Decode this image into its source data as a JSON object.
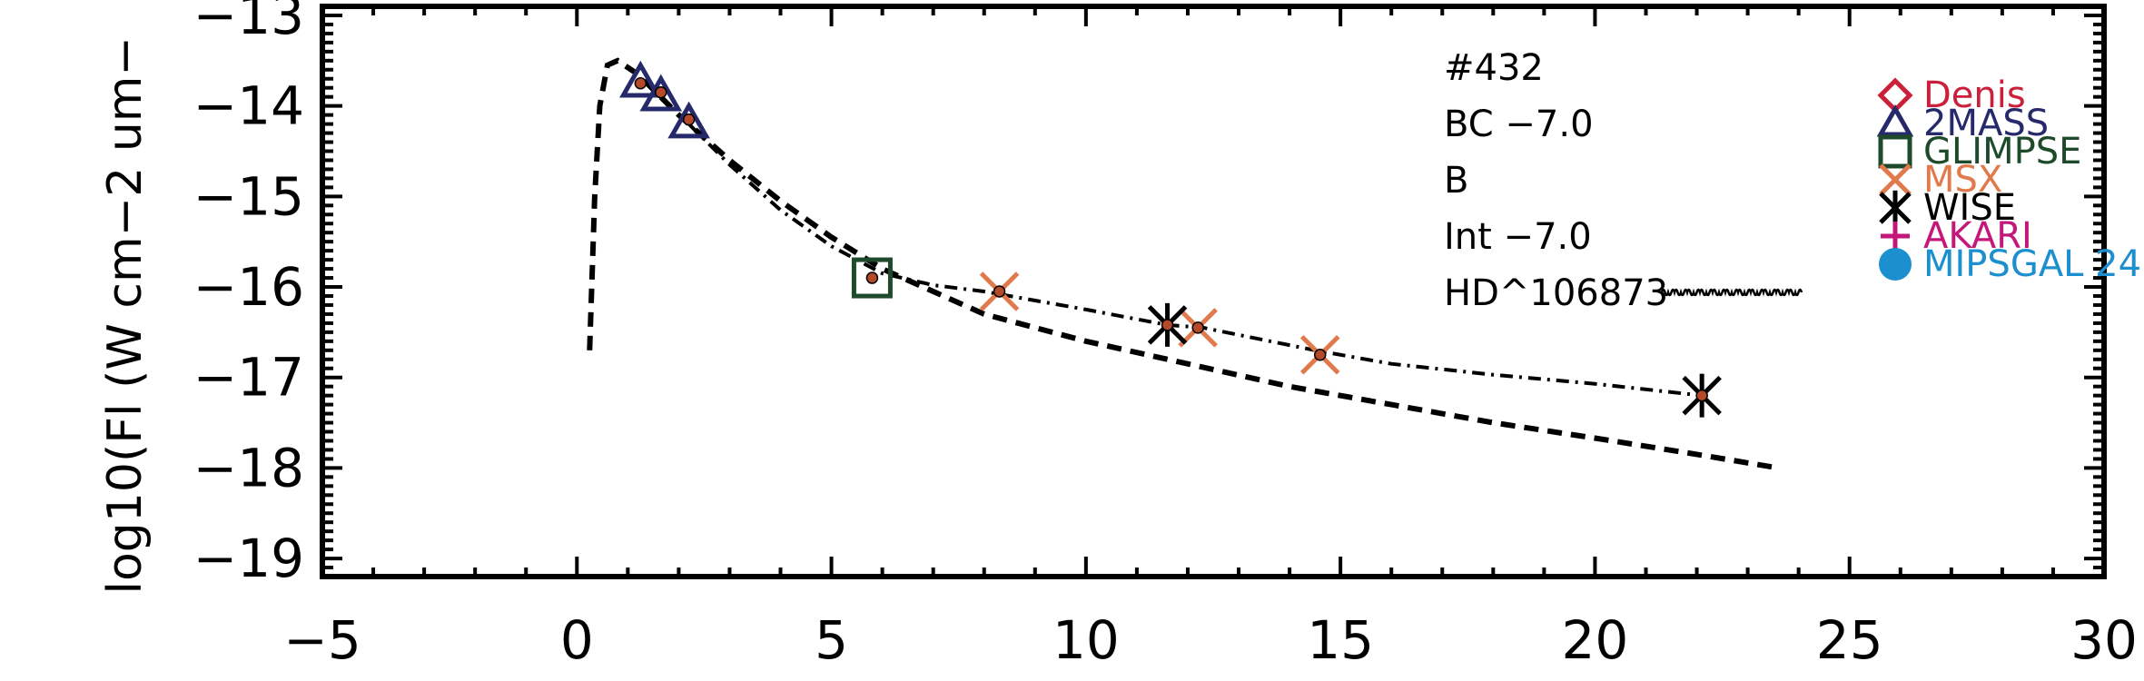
{
  "chart_data": {
    "type": "scatter",
    "title": "",
    "xlabel": "",
    "ylabel": "log10(Fl (W cm−2 um−",
    "xlim": [
      -5,
      30
    ],
    "ylim": [
      -19.2,
      -12.9
    ],
    "x_ticks": [
      -5,
      0,
      5,
      10,
      15,
      20,
      25,
      30
    ],
    "x_tick_labels": [
      "−5",
      "0",
      "5",
      "10",
      "15",
      "20",
      "25",
      "30"
    ],
    "y_ticks": [
      -19,
      -18,
      -17,
      -16,
      -15,
      -14,
      -13
    ],
    "y_tick_labels": [
      "−19",
      "−18",
      "−17",
      "−16",
      "−15",
      "−14",
      "−13"
    ],
    "grid": false,
    "legend_position": "right",
    "annotations": [
      "#432",
      "BC  −7.0",
      "B",
      "Int  −7.0",
      "HD^106873"
    ],
    "legend": [
      {
        "label": "Denis",
        "color": "#cc1f3a",
        "marker": "diamond"
      },
      {
        "label": "2MASS",
        "color": "#262a6b",
        "marker": "triangle"
      },
      {
        "label": "GLIMPSE",
        "color": "#1d4a2a",
        "marker": "square"
      },
      {
        "label": "MSX",
        "color": "#e07a4c",
        "marker": "x"
      },
      {
        "label": "WISE",
        "color": "#000000",
        "marker": "asterisk"
      },
      {
        "label": "AKARI",
        "color": "#c4177a",
        "marker": "plus"
      },
      {
        "label": "MIPSGAL 24",
        "color": "#1c8fcf",
        "marker": "circle"
      }
    ],
    "model_curve": {
      "style": "dashed",
      "points": [
        [
          0.25,
          -16.7
        ],
        [
          0.35,
          -15.0
        ],
        [
          0.45,
          -14.0
        ],
        [
          0.6,
          -13.55
        ],
        [
          0.8,
          -13.5
        ],
        [
          1.2,
          -13.65
        ],
        [
          2.0,
          -14.1
        ],
        [
          3.0,
          -14.6
        ],
        [
          4.0,
          -15.05
        ],
        [
          5.0,
          -15.45
        ],
        [
          6.0,
          -15.8
        ],
        [
          7.0,
          -16.05
        ],
        [
          8.0,
          -16.3
        ],
        [
          10.0,
          -16.6
        ],
        [
          12.0,
          -16.85
        ],
        [
          14.0,
          -17.1
        ],
        [
          16.0,
          -17.3
        ],
        [
          18.0,
          -17.5
        ],
        [
          20.0,
          -17.67
        ],
        [
          22.0,
          -17.85
        ],
        [
          23.6,
          -18.0
        ]
      ]
    },
    "fit_curve": {
      "style": "dashdot",
      "points": [
        [
          2.2,
          -14.2
        ],
        [
          3.0,
          -14.65
        ],
        [
          4.0,
          -15.15
        ],
        [
          5.0,
          -15.55
        ],
        [
          6.0,
          -15.85
        ],
        [
          7.0,
          -15.98
        ],
        [
          8.0,
          -16.05
        ],
        [
          10.0,
          -16.25
        ],
        [
          11.6,
          -16.42
        ],
        [
          12.3,
          -16.45
        ],
        [
          14.5,
          -16.7
        ],
        [
          16.0,
          -16.85
        ],
        [
          18.0,
          -16.97
        ],
        [
          20.0,
          -17.07
        ],
        [
          22.1,
          -17.2
        ]
      ]
    },
    "flux_points": [
      {
        "x": 1.25,
        "y": -13.75,
        "color": "#b54a2a"
      },
      {
        "x": 1.65,
        "y": -13.85,
        "color": "#b54a2a"
      },
      {
        "x": 2.2,
        "y": -14.15,
        "color": "#b54a2a"
      },
      {
        "x": 5.8,
        "y": -15.9,
        "color": "#b54a2a"
      },
      {
        "x": 8.3,
        "y": -16.05,
        "color": "#b54a2a"
      },
      {
        "x": 11.6,
        "y": -16.42,
        "color": "#b54a2a"
      },
      {
        "x": 12.2,
        "y": -16.45,
        "color": "#b54a2a"
      },
      {
        "x": 14.6,
        "y": -16.75,
        "color": "#b54a2a"
      },
      {
        "x": 22.1,
        "y": -17.2,
        "color": "#b54a2a"
      }
    ],
    "series": [
      {
        "name": "2MASS",
        "marker": "triangle",
        "color": "#262a6b",
        "x": [
          1.25,
          1.65,
          2.2
        ],
        "y": [
          -13.7,
          -13.85,
          -14.15
        ]
      },
      {
        "name": "GLIMPSE",
        "marker": "square",
        "color": "#1d4a2a",
        "x": [
          5.8
        ],
        "y": [
          -15.9
        ]
      },
      {
        "name": "MSX",
        "marker": "x",
        "color": "#e07a4c",
        "x": [
          8.3,
          12.2,
          14.6
        ],
        "y": [
          -16.05,
          -16.45,
          -16.75
        ]
      },
      {
        "name": "WISE",
        "marker": "asterisk",
        "color": "#000000",
        "x": [
          11.6,
          22.1
        ],
        "y": [
          -16.42,
          -17.2
        ]
      }
    ]
  }
}
